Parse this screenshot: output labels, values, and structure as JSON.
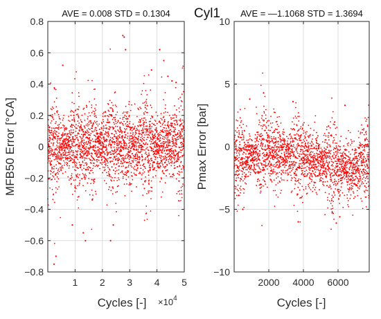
{
  "figure": {
    "suptitle": "Cyl1"
  },
  "chart_data": [
    {
      "type": "scatter",
      "title": "AVE = 0.008 STD = 0.1304",
      "xlabel": "Cycles [-]",
      "ylabel": "MFB50 Error [°CA]",
      "x_exponent_label": "×10",
      "x_exponent_power": "4",
      "xlim": [
        0,
        50000
      ],
      "ylim": [
        -0.8,
        0.8
      ],
      "xticks": [
        10000,
        20000,
        30000,
        40000,
        50000
      ],
      "xtick_labels": [
        "1",
        "2",
        "3",
        "4",
        "5"
      ],
      "yticks": [
        -0.8,
        -0.6,
        -0.4,
        -0.2,
        0,
        0.2,
        0.4,
        0.6,
        0.8
      ],
      "ytick_labels": [
        "−0.8",
        "−0.6",
        "−0.4",
        "−0.2",
        "0",
        "0.2",
        "0.4",
        "0.6",
        "0.8"
      ],
      "grid": true,
      "marker_color": "#ff0000",
      "series": [
        {
          "mean": 0.008,
          "std": 0.1304,
          "n_cycles": 50000,
          "outliers_x": [
            2300,
            3000,
            5500,
            9000,
            13000,
            13800,
            23000,
            24000,
            27500,
            28000,
            28500,
            38000,
            41000,
            42500,
            44000,
            45500,
            47000
          ],
          "outliers_y": [
            -0.75,
            -0.7,
            0.52,
            -0.5,
            -0.55,
            -0.6,
            -0.6,
            -0.5,
            0.71,
            0.7,
            0.62,
            0.49,
            0.62,
            0.55,
            0.45,
            0.42,
            0.41
          ]
        }
      ]
    },
    {
      "type": "scatter",
      "title": "AVE = —1.1068 STD = 1.3694",
      "xlabel": "Cycles [-]",
      "ylabel": "Pmax Error [bar]",
      "xlim": [
        0,
        7800
      ],
      "ylim": [
        -10,
        10
      ],
      "xticks": [
        2000,
        4000,
        6000
      ],
      "xtick_labels": [
        "2000",
        "4000",
        "6000"
      ],
      "yticks": [
        -10,
        -5,
        0,
        5,
        10
      ],
      "ytick_labels": [
        "−10",
        "−5",
        "0",
        "5",
        "10"
      ],
      "grid": true,
      "marker_color": "#ff0000",
      "series": [
        {
          "mean": -1.1068,
          "std": 1.3694,
          "n_cycles": 7800,
          "outliers_x": [
            900,
            1700,
            3400,
            5900,
            6100,
            6400,
            3700,
            500
          ],
          "outliers_y": [
            3.8,
            4.3,
            3.6,
            -6.1,
            -5.6,
            3.3,
            -6.0,
            -5.0
          ]
        }
      ]
    }
  ]
}
